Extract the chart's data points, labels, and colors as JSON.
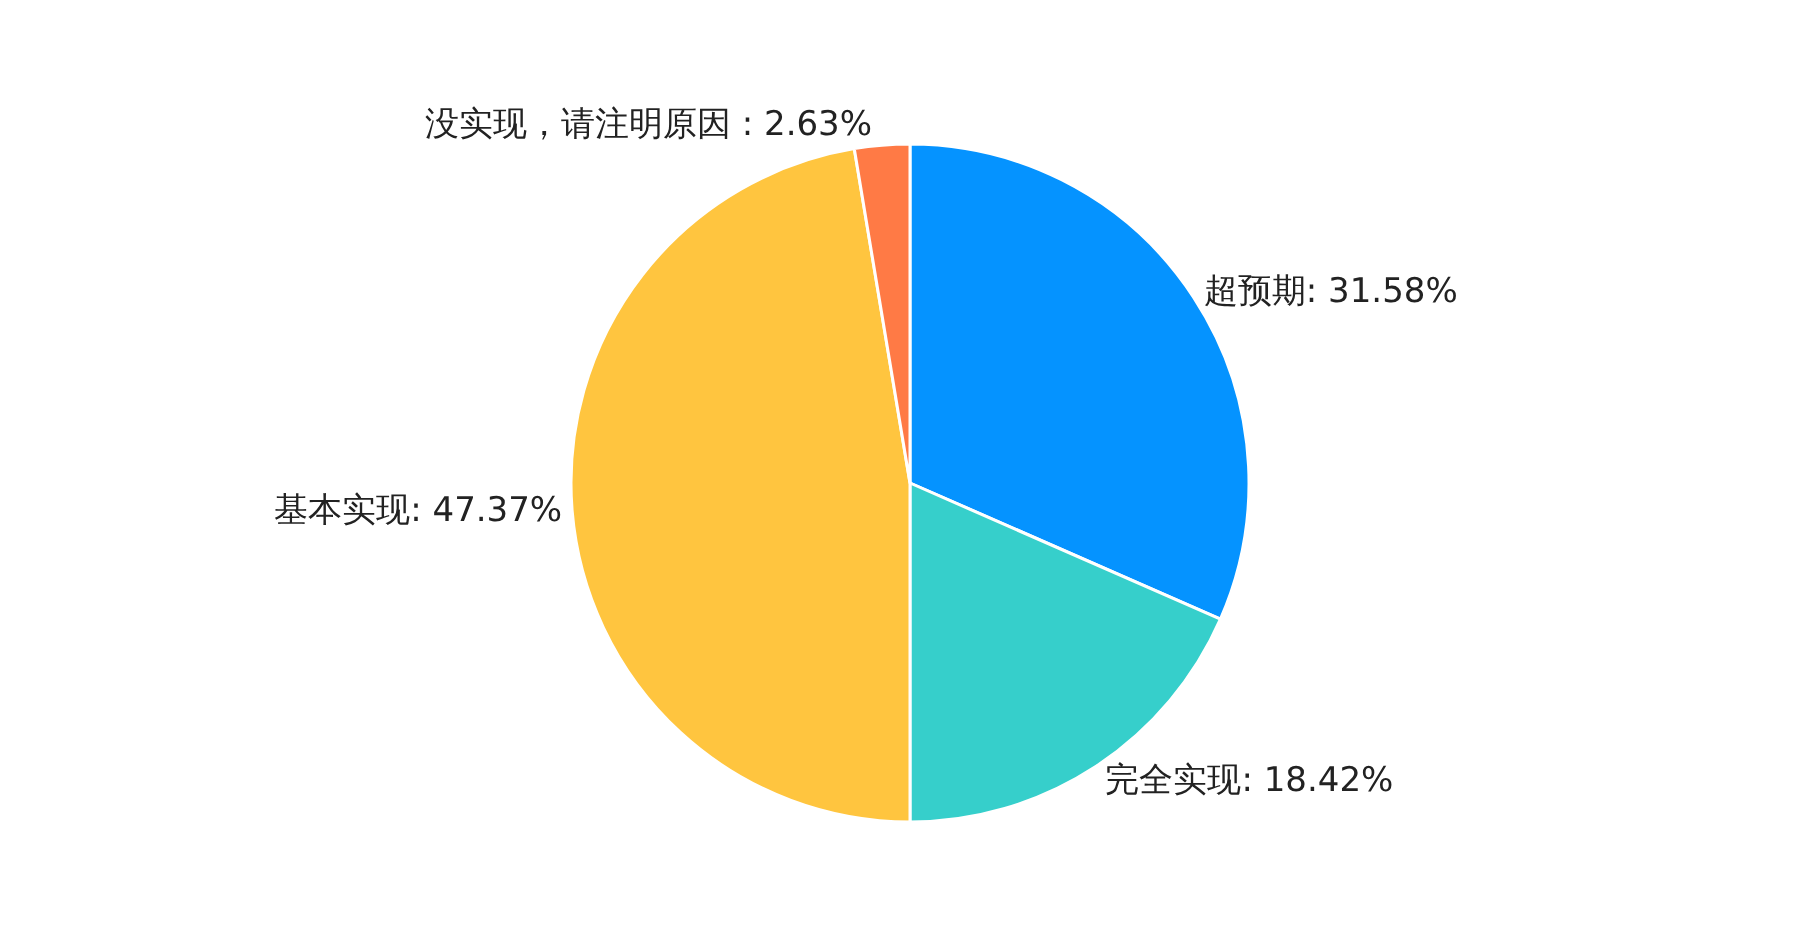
{
  "chart_data": {
    "type": "pie",
    "categories": [
      "超预期",
      "完全实现",
      "基本实现",
      "没实现，请注明原因"
    ],
    "values": [
      31.58,
      18.42,
      47.37,
      2.63
    ],
    "colors": [
      "#0593ff",
      "#36cfcb",
      "#ffc53f",
      "#ff7a45"
    ],
    "value_labels": [
      ": 31.58%",
      ": 18.42%",
      ": 47.37%",
      " : 2.63%"
    ],
    "legend": false
  }
}
